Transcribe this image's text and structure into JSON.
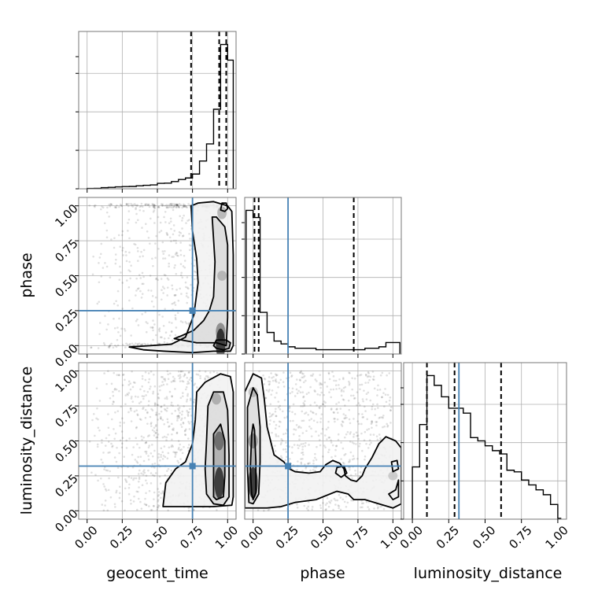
{
  "chart_data": {
    "type": "corner",
    "parameters": [
      "geocent_time",
      "phase",
      "luminosity_distance"
    ],
    "axis_labels": [
      "geocent_time",
      "phase",
      "luminosity_distance"
    ],
    "tick_values": [
      0.0,
      0.25,
      0.5,
      0.75,
      1.0
    ],
    "tick_labels": [
      "0.00",
      "0.25",
      "0.50",
      "0.75",
      "1.00"
    ],
    "axis_range": [
      -0.06,
      1.06
    ],
    "grid": true,
    "truths": [
      0.75,
      0.25,
      0.32
    ],
    "truth_color": "#4682b4",
    "quantiles": [
      [
        0.74,
        0.94,
        0.99
      ],
      [
        0.01,
        0.04,
        0.72
      ],
      [
        0.1,
        0.29,
        0.61
      ]
    ],
    "histograms": [
      {
        "parameter": "geocent_time",
        "bin_edges": [
          0.0,
          0.05,
          0.1,
          0.15,
          0.2,
          0.25,
          0.3,
          0.35,
          0.4,
          0.45,
          0.5,
          0.55,
          0.6,
          0.65,
          0.7,
          0.75,
          0.8,
          0.85,
          0.9,
          0.95,
          1.0,
          1.04
        ],
        "counts": [
          0.2,
          0.3,
          0.7,
          0.9,
          1.2,
          1.4,
          1.5,
          1.9,
          2.2,
          2.5,
          3.5,
          3.6,
          4.6,
          5.9,
          6.9,
          9.4,
          17.7,
          28.6,
          50.7,
          92.0,
          82.0
        ]
      },
      {
        "parameter": "phase",
        "bin_edges": [
          -0.05,
          0.0,
          0.05,
          0.1,
          0.15,
          0.2,
          0.25,
          0.3,
          0.35,
          0.4,
          0.45,
          0.5,
          0.55,
          0.6,
          0.65,
          0.7,
          0.75,
          0.8,
          0.85,
          0.9,
          0.95,
          1.0,
          1.05
        ],
        "counts": [
          100,
          95,
          29,
          15,
          9,
          7,
          5,
          4,
          4,
          4,
          3,
          3,
          3,
          3,
          3,
          3,
          3,
          4,
          4,
          5,
          8,
          8
        ]
      },
      {
        "parameter": "luminosity_distance",
        "bin_edges": [
          0.0,
          0.05,
          0.1,
          0.15,
          0.2,
          0.25,
          0.3,
          0.35,
          0.4,
          0.45,
          0.5,
          0.55,
          0.6,
          0.65,
          0.7,
          0.75,
          0.8,
          0.85,
          0.9,
          0.95,
          1.0,
          1.02
        ],
        "counts": [
          32,
          58,
          88,
          82,
          75,
          68,
          68,
          65,
          50,
          48,
          45,
          42,
          40,
          30,
          29,
          24,
          21,
          18,
          15,
          9,
          0.5
        ]
      }
    ],
    "contours_2d": [
      {
        "x": "geocent_time",
        "y": "phase",
        "levels": [
          [
            [
              0.74,
              1.0
            ],
            [
              0.79,
              1.02
            ],
            [
              0.9,
              1.03
            ],
            [
              1.0,
              1.0
            ],
            [
              1.03,
              0.96
            ],
            [
              1.04,
              0.65
            ],
            [
              1.04,
              0.25
            ],
            [
              1.04,
              0.0
            ],
            [
              1.02,
              -0.04
            ],
            [
              0.9,
              -0.04
            ],
            [
              0.75,
              -0.05
            ],
            [
              0.55,
              -0.04
            ],
            [
              0.4,
              -0.03
            ],
            [
              0.3,
              -0.01
            ],
            [
              0.45,
              0.0
            ],
            [
              0.6,
              0.01
            ],
            [
              0.7,
              0.06
            ],
            [
              0.76,
              0.22
            ],
            [
              0.79,
              0.45
            ],
            [
              0.78,
              0.62
            ],
            [
              0.75,
              0.82
            ],
            [
              0.74,
              1.0
            ]
          ],
          [
            [
              0.89,
              0.92
            ],
            [
              0.91,
              0.6
            ],
            [
              0.9,
              0.35
            ],
            [
              0.87,
              0.25
            ],
            [
              0.83,
              0.18
            ],
            [
              0.76,
              0.11
            ],
            [
              0.67,
              0.07
            ],
            [
              0.62,
              0.05
            ],
            [
              0.78,
              0.02
            ],
            [
              0.92,
              0.02
            ],
            [
              0.99,
              0.0
            ],
            [
              1.0,
              0.2
            ],
            [
              1.0,
              0.72
            ],
            [
              0.98,
              0.85
            ],
            [
              0.92,
              0.92
            ],
            [
              0.89,
              0.92
            ]
          ],
          [
            [
              0.92,
              0.04
            ],
            [
              0.95,
              0.04
            ],
            [
              0.99,
              0.04
            ],
            [
              1.02,
              0.02
            ],
            [
              1.01,
              -0.02
            ],
            [
              0.97,
              -0.03
            ],
            [
              0.92,
              -0.02
            ],
            [
              0.9,
              0.0
            ],
            [
              0.92,
              0.04
            ]
          ],
          [
            [
              0.96,
              1.02
            ],
            [
              0.99,
              1.02
            ],
            [
              1.0,
              0.98
            ],
            [
              0.98,
              0.96
            ],
            [
              0.95,
              0.97
            ],
            [
              0.96,
              1.02
            ]
          ]
        ],
        "density_peaks": [
          [
            0.95,
            0.01,
            1.0
          ],
          [
            0.95,
            0.1,
            0.45
          ],
          [
            0.96,
            0.5,
            0.15
          ],
          [
            0.96,
            0.95,
            0.25
          ]
        ]
      },
      {
        "x": "geocent_time",
        "y": "luminosity_distance",
        "levels": [
          [
            [
              0.78,
              0.85
            ],
            [
              0.84,
              0.92
            ],
            [
              0.95,
              0.98
            ],
            [
              1.02,
              0.96
            ],
            [
              1.04,
              0.85
            ],
            [
              1.04,
              0.5
            ],
            [
              1.04,
              0.1
            ],
            [
              1.03,
              0.04
            ],
            [
              0.9,
              0.03
            ],
            [
              0.7,
              0.03
            ],
            [
              0.54,
              0.03
            ],
            [
              0.56,
              0.2
            ],
            [
              0.63,
              0.3
            ],
            [
              0.7,
              0.35
            ],
            [
              0.75,
              0.48
            ],
            [
              0.77,
              0.65
            ],
            [
              0.78,
              0.85
            ]
          ],
          [
            [
              0.86,
              0.75
            ],
            [
              0.9,
              0.85
            ],
            [
              0.97,
              0.85
            ],
            [
              1.0,
              0.72
            ],
            [
              1.01,
              0.4
            ],
            [
              1.01,
              0.1
            ],
            [
              0.97,
              0.04
            ],
            [
              0.9,
              0.05
            ],
            [
              0.85,
              0.12
            ],
            [
              0.84,
              0.3
            ],
            [
              0.85,
              0.5
            ],
            [
              0.86,
              0.75
            ]
          ],
          [
            [
              0.9,
              0.55
            ],
            [
              0.95,
              0.62
            ],
            [
              0.98,
              0.5
            ],
            [
              0.98,
              0.25
            ],
            [
              0.97,
              0.1
            ],
            [
              0.92,
              0.08
            ],
            [
              0.9,
              0.1
            ],
            [
              0.9,
              0.3
            ],
            [
              0.9,
              0.55
            ]
          ]
        ],
        "density_peaks": [
          [
            0.94,
            0.2,
            1.0
          ],
          [
            0.94,
            0.5,
            0.5
          ],
          [
            0.92,
            0.8,
            0.2
          ]
        ]
      },
      {
        "x": "phase",
        "y": "luminosity_distance",
        "levels": [
          [
            [
              -0.06,
              0.85
            ],
            [
              0.0,
              0.98
            ],
            [
              0.06,
              0.95
            ],
            [
              0.08,
              0.8
            ],
            [
              0.1,
              0.6
            ],
            [
              0.15,
              0.4
            ],
            [
              0.22,
              0.35
            ],
            [
              0.26,
              0.3
            ],
            [
              0.3,
              0.28
            ],
            [
              0.4,
              0.27
            ],
            [
              0.48,
              0.28
            ],
            [
              0.52,
              0.33
            ],
            [
              0.57,
              0.36
            ],
            [
              0.62,
              0.34
            ],
            [
              0.65,
              0.3
            ],
            [
              0.66,
              0.25
            ],
            [
              0.7,
              0.22
            ],
            [
              0.74,
              0.21
            ],
            [
              0.78,
              0.25
            ],
            [
              0.8,
              0.3
            ],
            [
              0.85,
              0.38
            ],
            [
              0.9,
              0.48
            ],
            [
              0.95,
              0.53
            ],
            [
              1.02,
              0.5
            ],
            [
              1.06,
              0.45
            ],
            [
              1.06,
              0.2
            ],
            [
              1.06,
              0.05
            ],
            [
              1.0,
              0.02
            ],
            [
              0.9,
              0.05
            ],
            [
              0.8,
              0.08
            ],
            [
              0.72,
              0.08
            ],
            [
              0.68,
              0.12
            ],
            [
              0.6,
              0.14
            ],
            [
              0.45,
              0.08
            ],
            [
              0.3,
              0.06
            ],
            [
              0.2,
              0.03
            ],
            [
              0.1,
              0.02
            ],
            [
              0.0,
              0.02
            ],
            [
              -0.06,
              0.02
            ],
            [
              -0.06,
              0.85
            ]
          ],
          [
            [
              -0.04,
              0.74
            ],
            [
              0.0,
              0.88
            ],
            [
              0.03,
              0.83
            ],
            [
              0.05,
              0.6
            ],
            [
              0.05,
              0.35
            ],
            [
              0.04,
              0.12
            ],
            [
              0.0,
              0.05
            ],
            [
              -0.03,
              0.06
            ],
            [
              -0.04,
              0.3
            ],
            [
              -0.04,
              0.74
            ]
          ],
          [
            [
              -0.01,
              0.55
            ],
            [
              0.0,
              0.62
            ],
            [
              0.01,
              0.58
            ],
            [
              0.02,
              0.35
            ],
            [
              0.02,
              0.13
            ],
            [
              0.0,
              0.08
            ],
            [
              -0.01,
              0.12
            ],
            [
              -0.02,
              0.3
            ],
            [
              -0.01,
              0.55
            ]
          ],
          [
            [
              0.6,
              0.31
            ],
            [
              0.65,
              0.32
            ],
            [
              0.67,
              0.27
            ],
            [
              0.63,
              0.24
            ],
            [
              0.59,
              0.27
            ],
            [
              0.6,
              0.31
            ]
          ],
          [
            [
              0.99,
              0.35
            ],
            [
              1.03,
              0.36
            ],
            [
              1.04,
              0.3
            ],
            [
              1.0,
              0.28
            ],
            [
              0.99,
              0.35
            ]
          ],
          [
            [
              0.97,
              0.12
            ],
            [
              1.02,
              0.15
            ],
            [
              1.04,
              0.22
            ],
            [
              1.04,
              0.1
            ],
            [
              1.0,
              0.08
            ],
            [
              0.97,
              0.12
            ]
          ]
        ],
        "density_peaks": [
          [
            0.0,
            0.2,
            1.0
          ],
          [
            0.0,
            0.5,
            0.35
          ],
          [
            0.0,
            0.85,
            0.15
          ],
          [
            1.0,
            0.25,
            0.1
          ]
        ]
      }
    ],
    "scatter_density": [
      {
        "x": "geocent_time",
        "y": "phase",
        "region": [
          [
            0.0,
            0.95
          ],
          [
            -0.02,
            1.02
          ]
        ],
        "weight_x": "right"
      },
      {
        "x": "geocent_time",
        "y": "luminosity_distance",
        "region": [
          [
            0.0,
            0.95
          ],
          [
            0.0,
            1.0
          ]
        ],
        "weight_x": "right"
      },
      {
        "x": "phase",
        "y": "luminosity_distance",
        "region": [
          [
            0.0,
            1.0
          ],
          [
            0.0,
            1.0
          ]
        ],
        "weight_x": "uniform"
      }
    ]
  }
}
